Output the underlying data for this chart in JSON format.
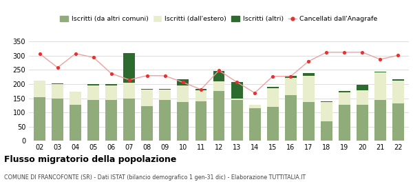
{
  "years": [
    "02",
    "03",
    "04",
    "05",
    "06",
    "07",
    "08",
    "09",
    "10",
    "11",
    "12",
    "13",
    "14",
    "15",
    "16",
    "17",
    "18",
    "19",
    "20",
    "21",
    "22"
  ],
  "iscritti_altri_comuni": [
    155,
    150,
    128,
    143,
    143,
    148,
    122,
    143,
    138,
    140,
    175,
    143,
    115,
    120,
    160,
    138,
    68,
    128,
    128,
    143,
    133
  ],
  "iscritti_estero": [
    57,
    50,
    44,
    53,
    53,
    57,
    58,
    38,
    57,
    37,
    35,
    5,
    12,
    65,
    62,
    90,
    68,
    43,
    50,
    97,
    80
  ],
  "iscritti_altri": [
    0,
    2,
    2,
    3,
    3,
    103,
    2,
    3,
    22,
    5,
    35,
    60,
    1,
    5,
    8,
    10,
    4,
    4,
    20,
    3,
    3
  ],
  "cancellati": [
    307,
    258,
    307,
    294,
    237,
    215,
    230,
    229,
    206,
    181,
    248,
    207,
    169,
    227,
    227,
    280,
    312,
    312,
    312,
    287,
    301
  ],
  "color_altri_comuni": "#8fac7a",
  "color_estero": "#e8eecc",
  "color_altri": "#2d6a2d",
  "color_cancellati": "#e83030",
  "color_line": "#f0a0a0",
  "bg_color": "#ffffff",
  "grid_color": "#dddddd",
  "title": "Flusso migratorio della popolazione",
  "subtitle": "COMUNE DI FRANCOFONTE (SR) - Dati ISTAT (bilancio demografico 1 gen-31 dic) - Elaborazione TUTTITALIA.IT",
  "legend_labels": [
    "Iscritti (da altri comuni)",
    "Iscritti (dall'estero)",
    "Iscritti (altri)",
    "Cancellati dall'Anagrafe"
  ],
  "ylim": [
    0,
    360
  ],
  "yticks": [
    0,
    50,
    100,
    150,
    200,
    250,
    300,
    350
  ]
}
